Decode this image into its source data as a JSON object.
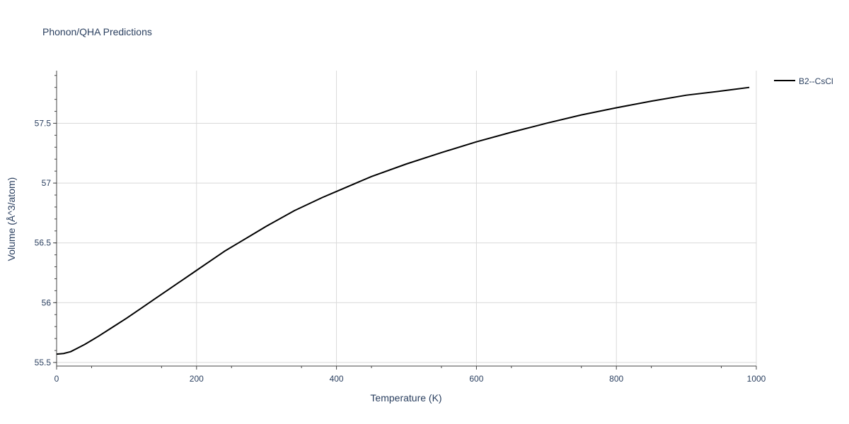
{
  "chart_data": {
    "type": "line",
    "title": "Phonon/QHA Predictions",
    "xlabel": "Temperature (K)",
    "ylabel": "Volume (Å^3/atom)",
    "xlim": [
      0,
      1000
    ],
    "ylim": [
      55.47,
      57.94
    ],
    "x_ticks": [
      0,
      200,
      400,
      600,
      800,
      1000
    ],
    "x_tick_labels": [
      "0",
      "200",
      "400",
      "600",
      "800",
      "1000"
    ],
    "y_ticks": [
      55.5,
      56,
      56.5,
      57,
      57.5
    ],
    "y_tick_labels": [
      "55.5",
      "56",
      "56.5",
      "57",
      "57.5"
    ],
    "grid": true,
    "legend_position": "top-right",
    "series": [
      {
        "name": "B2--CsCl",
        "color": "#000000",
        "x": [
          0,
          10,
          20,
          30,
          40,
          50,
          60,
          80,
          100,
          120,
          140,
          160,
          180,
          200,
          220,
          240,
          260,
          280,
          300,
          340,
          380,
          400,
          450,
          500,
          550,
          600,
          650,
          700,
          750,
          800,
          850,
          900,
          950,
          990
        ],
        "y": [
          55.57,
          55.575,
          55.59,
          55.62,
          55.65,
          55.685,
          55.72,
          55.795,
          55.87,
          55.95,
          56.03,
          56.11,
          56.19,
          56.27,
          56.35,
          56.43,
          56.5,
          56.57,
          56.64,
          56.77,
          56.88,
          56.93,
          57.055,
          57.16,
          57.255,
          57.345,
          57.425,
          57.5,
          57.57,
          57.63,
          57.685,
          57.735,
          57.77,
          57.8
        ]
      }
    ]
  }
}
